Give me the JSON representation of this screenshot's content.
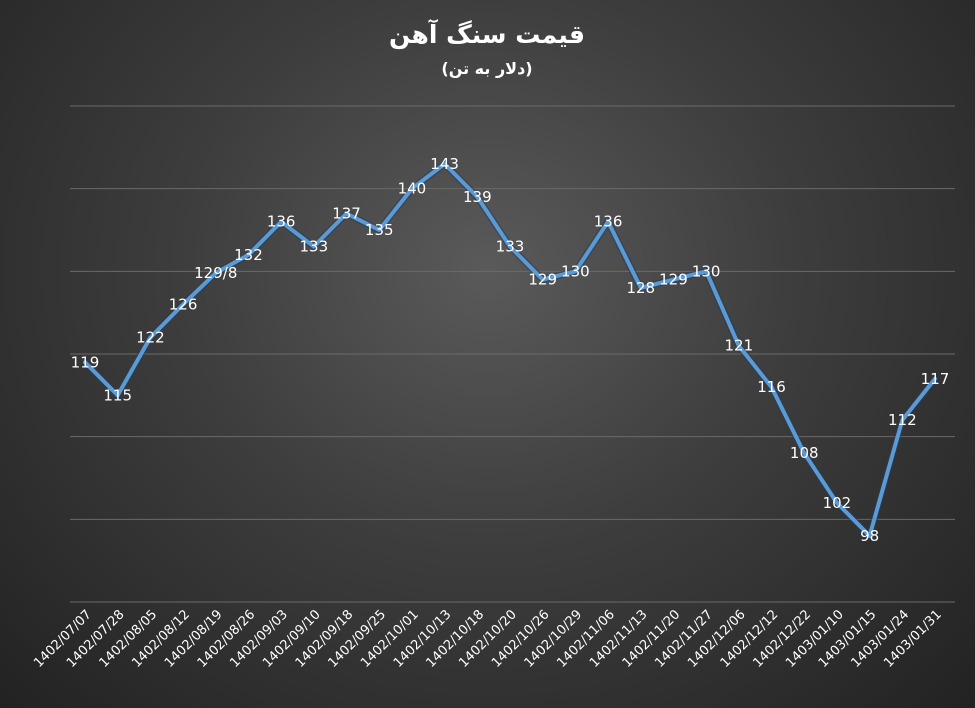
{
  "chart_data": {
    "type": "line",
    "title": "قیمت سنگ آهن",
    "subtitle": "(دلار به تن)",
    "xlabel": "",
    "ylabel": "",
    "ylim": [
      90,
      150
    ],
    "grid": true,
    "legend": "none",
    "line_color": "#5b9bd5",
    "categories": [
      "1402/07/07",
      "1402/07/28",
      "1402/08/05",
      "1402/08/12",
      "1402/08/19",
      "1402/08/26",
      "1402/09/03",
      "1402/09/10",
      "1402/09/18",
      "1402/09/25",
      "1402/10/01",
      "1402/10/13",
      "1402/10/18",
      "1402/10/20",
      "1402/10/26",
      "1402/10/29",
      "1402/11/06",
      "1402/11/13",
      "1402/11/20",
      "1402/11/27",
      "1402/12/06",
      "1402/12/12",
      "1402/12/22",
      "1403/01/10",
      "1403/01/15",
      "1403/01/24",
      "1403/01/31"
    ],
    "values": [
      119,
      115,
      122,
      126,
      129.8,
      132,
      136,
      133,
      137,
      135,
      140,
      143,
      139,
      133,
      129,
      130,
      136,
      128,
      129,
      130,
      121,
      116,
      108,
      102,
      98,
      112,
      117
    ],
    "data_labels": [
      "119",
      "115",
      "122",
      "126",
      "129/8",
      "132",
      "136",
      "133",
      "137",
      "135",
      "140",
      "143",
      "139",
      "133",
      "129",
      "130",
      "136",
      "128",
      "129",
      "130",
      "121",
      "116",
      "108",
      "102",
      "98",
      "112",
      "117"
    ]
  }
}
